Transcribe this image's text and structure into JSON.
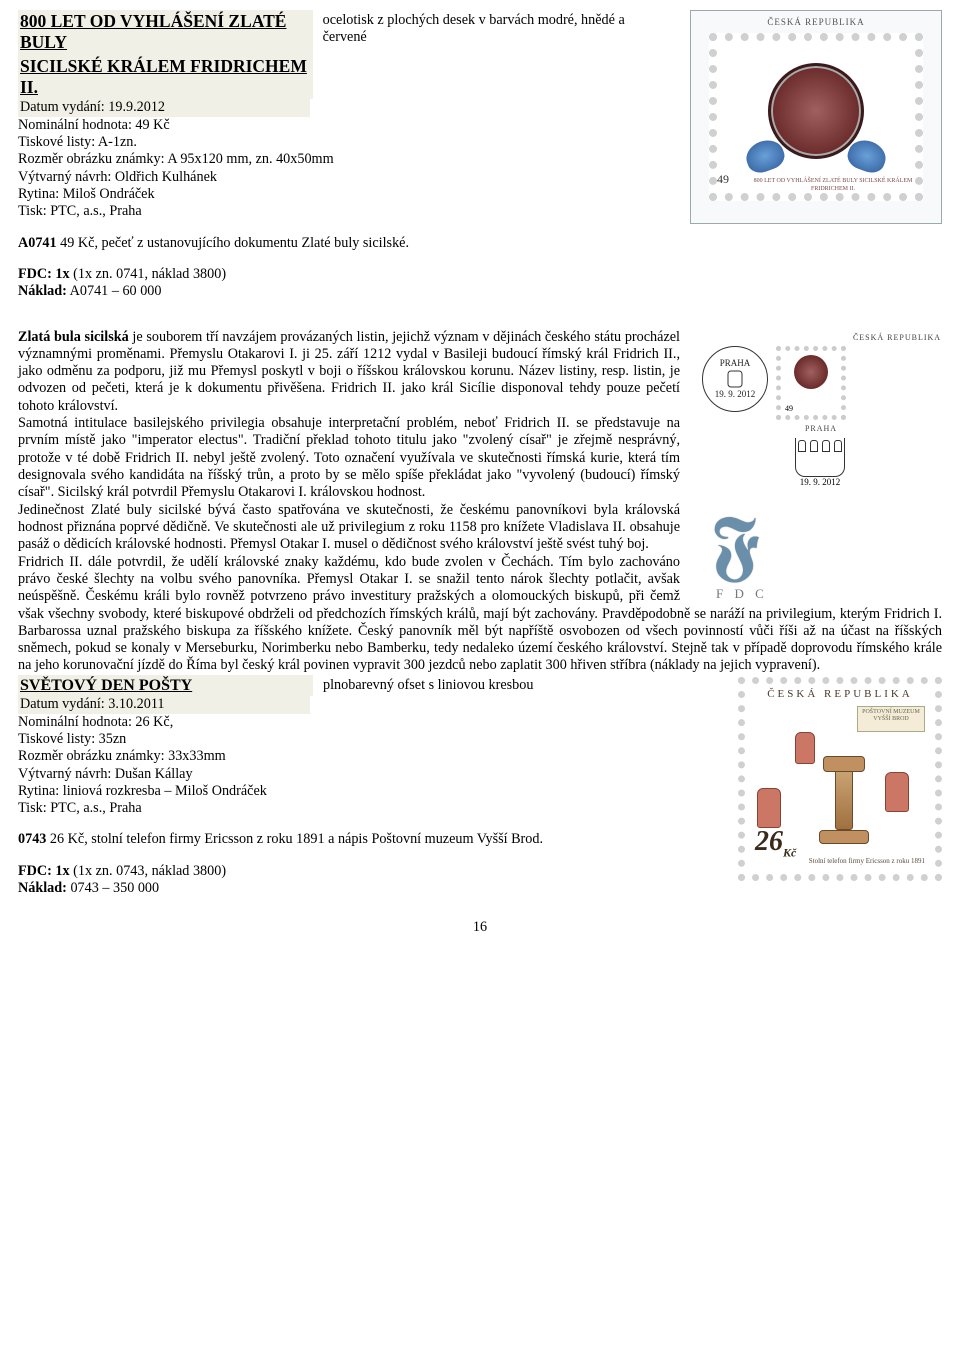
{
  "stamp1": {
    "title1": "800 LET OD VYHLÁŠENÍ ZLATÉ BULY",
    "title2": "SICILSKÉ KRÁLEM FRIDRICHEM II.",
    "technique_note": "ocelotisk z plochých desek v barvách modré, hnědé a červené",
    "date_label": "Datum vydání:  19.9.2012",
    "nominal": "Nominální hodnota: 49 Kč",
    "sheets": "Tiskové listy:  A-1zn.",
    "size": "Rozměr obrázku známky: A 95x120 mm, zn. 40x50mm",
    "design": "Výtvarný návrh: Oldřich Kulhánek",
    "engraving": "Rytina:   Miloš Ondráček",
    "print": "Tisk: PTC, a.s., Praha",
    "catalog_line_code": "A0741",
    "catalog_line_rest": "   49 Kč, pečeť z ustanovujícího dokumentu Zlaté buly sicilské.",
    "fdc_label": "FDC:  1x ",
    "fdc_rest": "(1x zn. 0741, náklad 3800)",
    "naklad_label": "Náklad:",
    "naklad_rest": "  A0741 – 60 000",
    "img_country": "ČESKÁ REPUBLIKA",
    "img_value": "49",
    "img_caption": "800 LET OD VYHLÁŠENÍ ZLATÉ BULY SICILSKÉ KRÁLEM FRIDRICHEM II.",
    "postmark_city": "PRAHA",
    "postmark_date": "19. 9. 2012",
    "fdc_text": "F D C",
    "body_para": "Zlatá bula sicilská je souborem tří navzájem provázaných listin, jejichž význam v dějinách českého státu procházel významnými proměnami. Přemyslu Otakarovi I. ji 25. září 1212 vydal v Basileji budoucí římský král Fridrich II., jako odměnu za podporu, již mu Přemysl poskytl v boji o říšskou královskou korunu. Název listiny, resp. listin, je odvozen od pečeti, která je k dokumentu přivěšena. Fridrich II. jako král Sicílie disponoval tehdy pouze pečetí tohoto království.\nSamotná intitulace basilejského privilegia obsahuje interpretační problém, neboť Fridrich II. se představuje na prvním místě jako \"imperator electus\". Tradiční překlad tohoto titulu jako \"zvolený císař\" je zřejmě nesprávný, protože v té době Fridrich II. nebyl ještě zvolený. Toto označení využívala ve skutečnosti římská kurie, která tím designovala svého kandidáta na říšský trůn, a proto by se mělo spíše překládat jako \"vyvolený (budoucí) římský císař\". Sicilský král potvrdil Přemyslu Otakarovi I. královskou hodnost.\nJedinečnost Zlaté buly sicilské bývá často spatřována ve skutečnosti, že českému panovníkovi byla královská hodnost přiznána poprvé dědičně. Ve skutečnosti ale už privilegium z roku 1158 pro knížete Vladislava II. obsahuje pasáž o dědicích královské hodnosti. Přemysl Otakar I. musel o dědičnost svého království ještě svést tuhý boj.\nFridrich II. dále potvrdil, že udělí královské znaky každému, kdo bude zvolen v Čechách. Tím bylo zachováno právo české šlechty na volbu svého panovníka. Přemysl Otakar I. se snažil tento nárok šlechty potlačit, avšak neúspěšně. Českému králi bylo rovněž potvrzeno právo investitury pražských a olomouckých biskupů, při čemž však všechny svobody, které biskupové obdrželi od předchozích římských králů, mají být zachovány. Pravděpodobně se naráží na privilegium, kterým Fridrich I. Barbarossa uznal pražského biskupa za říšského knížete. Český panovník měl být napříště osvobozen od všech povinností vůči říši až na účast na říšských sněmech, pokud se konaly v Merseburku, Norimberku nebo Bamberku, tedy nedaleko území českého království. Stejně tak v případě doprovodu římského krále na jeho korunovační jízdě do Říma byl český král povinen vypravit 300 jezdců nebo zaplatit 300 hřiven stříbra (náklady na jejich vypravení)."
  },
  "stamp2": {
    "title": "SVĚTOVÝ DEN POŠTY",
    "technique_note": "plnobarevný ofset s liniovou kresbou",
    "date_label": "Datum vydání:  3.10.2011",
    "nominal": "Nominální hodnota:  26 Kč,",
    "sheets": "Tiskové listy:  35zn",
    "size": "Rozměr obrázku známky: 33x33mm",
    "design": "Výtvarný návrh: Dušan Kállay",
    "engraving": "Rytina:   liniová rozkresba – Miloš Ondráček",
    "print": "Tisk:  PTC, a.s., Praha",
    "catalog_line_code": "0743",
    "catalog_line_rest": "   26 Kč, stolní telefon firmy Ericsson z roku 1891 a nápis Poštovní muzeum Vyšší Brod.",
    "fdc_label": "FDC:  1x ",
    "fdc_rest": "(1x zn. 0743, náklad 3800)",
    "naklad_label": "Náklad:",
    "naklad_rest": "  0743 – 350 000",
    "img_country": "ČESKÁ   REPUBLIKA",
    "img_plaque": "POŠTOVNÍ MUZEUM VYŠŠÍ BROD",
    "img_value": "26",
    "img_caption": "Stolní telefon firmy Ericsson z roku 1891"
  },
  "page_number": "16"
}
